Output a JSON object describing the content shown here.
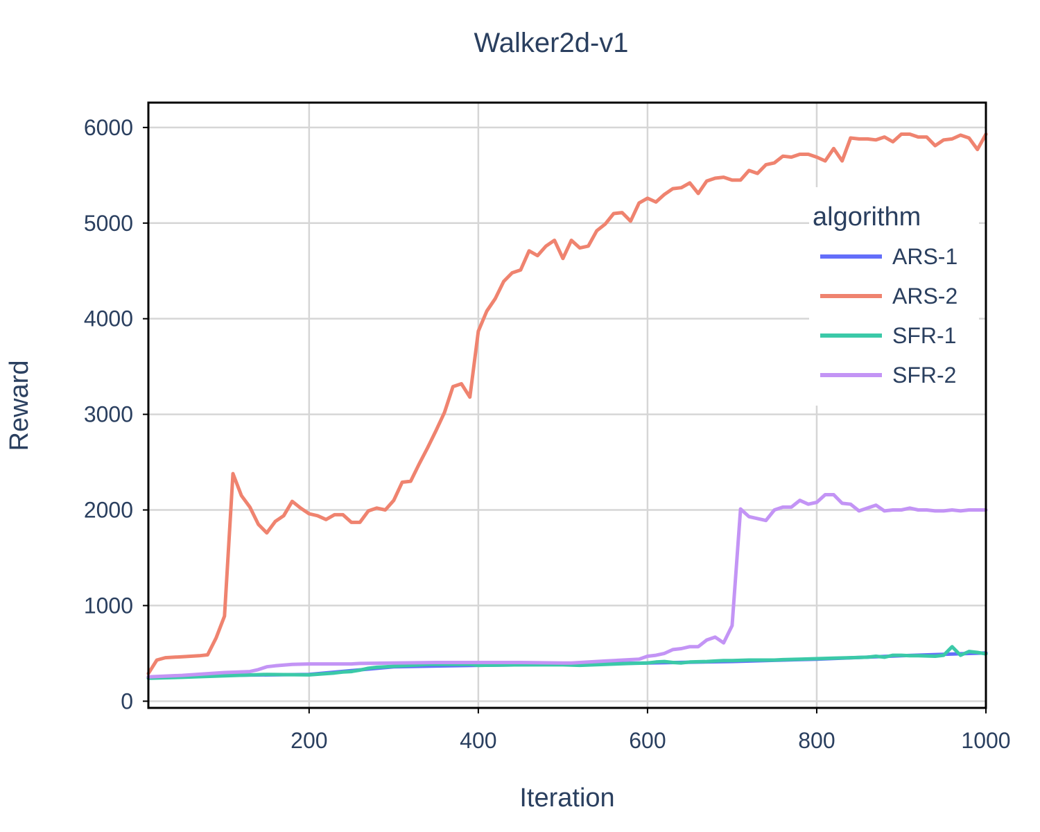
{
  "chart_data": {
    "type": "line",
    "title": "Walker2d-v1",
    "xlabel": "Iteration",
    "ylabel": "Reward",
    "xlim": [
      10,
      1000
    ],
    "ylim": [
      -70,
      6260
    ],
    "xticks": [
      200,
      400,
      600,
      800,
      1000
    ],
    "xtick_labels": [
      "200",
      "400",
      "600",
      "800",
      "1000"
    ],
    "yticks": [
      0,
      1000,
      2000,
      3000,
      4000,
      5000,
      6000
    ],
    "ytick_labels": [
      "0",
      "1000",
      "2000",
      "3000",
      "4000",
      "5000",
      "6000"
    ],
    "grid": true,
    "legend": {
      "title": "algorithm",
      "position": "top-right"
    },
    "series": [
      {
        "name": "ARS-1",
        "color": "#636efa",
        "x": [
          10,
          100,
          200,
          300,
          400,
          500,
          600,
          700,
          800,
          900,
          1000
        ],
        "y": [
          250,
          270,
          280,
          360,
          375,
          385,
          400,
          415,
          440,
          475,
          505
        ]
      },
      {
        "name": "ARS-2",
        "color": "#ef836f",
        "x": [
          10,
          20,
          30,
          40,
          50,
          60,
          70,
          80,
          90,
          100,
          110,
          120,
          130,
          140,
          150,
          160,
          170,
          180,
          190,
          200,
          210,
          220,
          230,
          240,
          250,
          260,
          270,
          280,
          290,
          300,
          310,
          320,
          330,
          340,
          350,
          360,
          370,
          380,
          390,
          400,
          410,
          420,
          430,
          440,
          450,
          460,
          470,
          480,
          490,
          500,
          510,
          520,
          530,
          540,
          550,
          560,
          570,
          580,
          590,
          600,
          610,
          620,
          630,
          640,
          650,
          660,
          670,
          680,
          690,
          700,
          710,
          720,
          730,
          740,
          750,
          760,
          770,
          780,
          790,
          800,
          810,
          820,
          830,
          840,
          850,
          860,
          870,
          880,
          890,
          900,
          910,
          920,
          930,
          940,
          950,
          960,
          970,
          980,
          990,
          1000
        ],
        "y": [
          290,
          430,
          455,
          460,
          465,
          470,
          475,
          485,
          660,
          890,
          2380,
          2150,
          2030,
          1850,
          1760,
          1880,
          1940,
          2090,
          2020,
          1960,
          1940,
          1900,
          1950,
          1950,
          1870,
          1870,
          1990,
          2020,
          2000,
          2100,
          2290,
          2300,
          2480,
          2650,
          2830,
          3020,
          3290,
          3320,
          3180,
          3870,
          4080,
          4210,
          4390,
          4480,
          4510,
          4710,
          4660,
          4760,
          4820,
          4630,
          4820,
          4740,
          4760,
          4920,
          4990,
          5100,
          5110,
          5020,
          5210,
          5260,
          5220,
          5300,
          5360,
          5370,
          5420,
          5310,
          5440,
          5470,
          5480,
          5450,
          5450,
          5550,
          5520,
          5610,
          5630,
          5700,
          5690,
          5720,
          5720,
          5690,
          5650,
          5780,
          5650,
          5890,
          5880,
          5880,
          5870,
          5900,
          5850,
          5930,
          5930,
          5900,
          5900,
          5810,
          5870,
          5880,
          5920,
          5890,
          5770,
          5930
        ]
      },
      {
        "name": "SFR-1",
        "color": "#3bc9a8",
        "x": [
          10,
          50,
          100,
          150,
          200,
          230,
          240,
          250,
          260,
          270,
          280,
          290,
          300,
          320,
          340,
          360,
          380,
          390,
          400,
          450,
          500,
          520,
          550,
          580,
          600,
          610,
          620,
          630,
          640,
          650,
          670,
          680,
          690,
          700,
          720,
          740,
          750,
          760,
          780,
          800,
          820,
          840,
          860,
          870,
          880,
          890,
          900,
          910,
          920,
          940,
          950,
          960,
          970,
          980,
          990,
          1000
        ],
        "y": [
          240,
          250,
          265,
          280,
          275,
          295,
          305,
          310,
          325,
          345,
          355,
          360,
          365,
          375,
          385,
          385,
          385,
          385,
          375,
          380,
          380,
          375,
          385,
          395,
          400,
          410,
          415,
          405,
          400,
          410,
          415,
          420,
          425,
          425,
          430,
          430,
          430,
          435,
          440,
          445,
          450,
          455,
          460,
          470,
          460,
          480,
          480,
          475,
          475,
          470,
          480,
          570,
          480,
          520,
          510,
          495
        ]
      },
      {
        "name": "SFR-2",
        "color": "#c394f5",
        "x": [
          10,
          50,
          100,
          130,
          140,
          150,
          160,
          180,
          200,
          250,
          260,
          300,
          350,
          400,
          450,
          500,
          510,
          550,
          590,
          600,
          610,
          620,
          630,
          640,
          650,
          660,
          670,
          680,
          690,
          700,
          710,
          720,
          730,
          740,
          750,
          760,
          770,
          780,
          790,
          800,
          810,
          820,
          830,
          840,
          850,
          860,
          870,
          880,
          890,
          900,
          910,
          920,
          930,
          940,
          950,
          960,
          970,
          980,
          990,
          1000
        ],
        "y": [
          255,
          270,
          300,
          310,
          330,
          360,
          370,
          385,
          390,
          390,
          395,
          400,
          405,
          405,
          405,
          400,
          400,
          420,
          440,
          470,
          480,
          500,
          540,
          550,
          570,
          570,
          640,
          670,
          610,
          790,
          2010,
          1930,
          1910,
          1890,
          2000,
          2030,
          2030,
          2100,
          2060,
          2080,
          2160,
          2160,
          2070,
          2060,
          1990,
          2020,
          2050,
          1990,
          2000,
          2000,
          2020,
          2000,
          2000,
          1990,
          1990,
          2000,
          1990,
          2000,
          2000,
          2000
        ]
      }
    ]
  }
}
